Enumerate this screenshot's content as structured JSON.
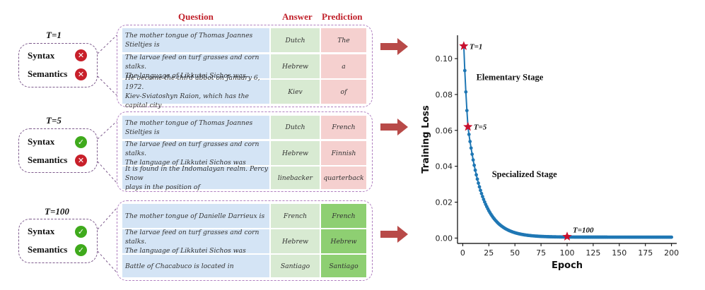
{
  "headers": {
    "question": "Question",
    "answer": "Answer",
    "prediction": "Prediction"
  },
  "groups": [
    {
      "t_label": "T=1",
      "syntax": {
        "label": "Syntax",
        "status": "wrong"
      },
      "semantics": {
        "label": "Semantics",
        "status": "wrong"
      },
      "rows": [
        {
          "question": "The mother tongue of Thomas Joannes Stieltjes is",
          "answer": "Dutch",
          "prediction": "The",
          "correct": false
        },
        {
          "question": "The larvae feed on turf grasses and corn stalks.\nThe language of Likkutei Sichos was",
          "answer": "Hebrew",
          "prediction": "a",
          "correct": false
        },
        {
          "question": "He became the third abbot on January 6, 1972.\nKiev-Sviatoshyn Raion, which has the capital city",
          "answer": "Kiev",
          "prediction": "of",
          "correct": false
        }
      ]
    },
    {
      "t_label": "T=5",
      "syntax": {
        "label": "Syntax",
        "status": "right"
      },
      "semantics": {
        "label": "Semantics",
        "status": "wrong"
      },
      "rows": [
        {
          "question": "The mother tongue of Thomas Joannes Stieltjes is",
          "answer": "Dutch",
          "prediction": "French",
          "correct": false
        },
        {
          "question": "The larvae feed on turf grasses and corn stalks.\nThe language of Likkutei Sichos was",
          "answer": "Hebrew",
          "prediction": "Finnish",
          "correct": false
        },
        {
          "question": "It is found in the Indomalayan realm. Percy Snow\nplays in the position of",
          "answer": "linebacker",
          "prediction": "quarterback",
          "correct": false
        }
      ]
    },
    {
      "t_label": "T=100",
      "syntax": {
        "label": "Syntax",
        "status": "right"
      },
      "semantics": {
        "label": "Semantics",
        "status": "right"
      },
      "rows": [
        {
          "question": "The mother tongue of Danielle Darrieux is",
          "answer": "French",
          "prediction": "French",
          "correct": true
        },
        {
          "question": "The larvae feed on turf grasses and corn stalks.\nThe language of Likkutei Sichos was",
          "answer": "Hebrew",
          "prediction": "Hebrew",
          "correct": true
        },
        {
          "question": "Battle of Chacabuco is located in",
          "answer": "Santiago",
          "prediction": "Santiago",
          "correct": true
        }
      ]
    }
  ],
  "chart_data": {
    "type": "line",
    "xlabel": "Epoch",
    "ylabel": "Training Loss",
    "xlim": [
      -5,
      205
    ],
    "ylim": [
      -0.003,
      0.113
    ],
    "xticks": [
      0,
      25,
      50,
      75,
      100,
      125,
      150,
      175,
      200
    ],
    "xtick_labels": [
      "0",
      "25",
      "50",
      "75",
      "100",
      "125",
      "150",
      "175",
      "200"
    ],
    "yticks": [
      0.0,
      0.02,
      0.04,
      0.06,
      0.08,
      0.1
    ],
    "ytick_labels": [
      "0.00",
      "0.02",
      "0.04",
      "0.06",
      "0.08",
      "0.10"
    ],
    "series": [
      {
        "name": "Training Loss",
        "color": "#1f77b4",
        "x_start": 1,
        "x_end": 200,
        "y_start": 0.107,
        "y_at_5": 0.062,
        "y_floor": 0.0005,
        "decay_epochs": 14
      }
    ],
    "markers": [
      {
        "label": "T=1",
        "x": 1,
        "y": 0.107
      },
      {
        "label": "T=5",
        "x": 5,
        "y": 0.062
      },
      {
        "label": "T=100",
        "x": 100,
        "y": 0.0008
      }
    ],
    "annotations": [
      {
        "text": "Elementary Stage",
        "x": 13,
        "y": 0.088
      },
      {
        "text": "Specialized Stage",
        "x": 28,
        "y": 0.034
      }
    ],
    "marker_color": "#c8102e"
  }
}
